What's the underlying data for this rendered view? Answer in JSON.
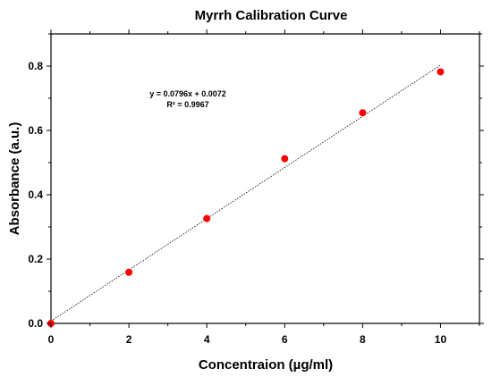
{
  "chart_data": {
    "type": "scatter",
    "title": "Myrrh Calibration Curve",
    "xlabel": "Concentraion (µg/ml)",
    "ylabel": "Absorbance (a.u.)",
    "xlim": [
      0,
      11
    ],
    "ylim": [
      0,
      0.9
    ],
    "x_ticks": [
      0,
      2,
      4,
      6,
      8,
      10
    ],
    "y_ticks": [
      0.0,
      0.2,
      0.4,
      0.6,
      0.8
    ],
    "x_tick_labels": [
      "0",
      "2",
      "4",
      "6",
      "8",
      "10"
    ],
    "y_tick_labels": [
      "0.0",
      "0.2",
      "0.4",
      "0.6",
      "0.8"
    ],
    "series": [
      {
        "x": [
          0,
          2,
          4,
          6,
          8,
          10
        ],
        "y": [
          0.0,
          0.159,
          0.326,
          0.512,
          0.655,
          0.782
        ],
        "color": "#ff0000",
        "marker": "circle"
      }
    ],
    "fit": {
      "slope": 0.0796,
      "intercept": 0.0072,
      "x_range": [
        0,
        10
      ],
      "style": "dotted",
      "color": "#000000"
    },
    "annotations": {
      "equation": "y = 0.0796x + 0.0072",
      "r_squared": "R² = 0.9967"
    },
    "grid": false,
    "legend": "none"
  }
}
